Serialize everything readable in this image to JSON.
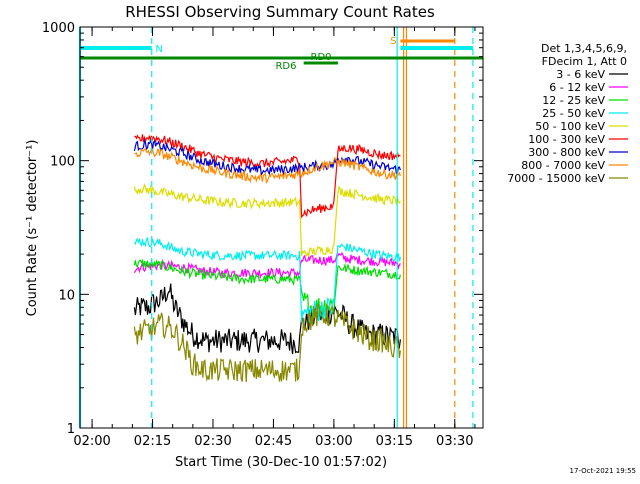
{
  "chart_data": {
    "type": "line",
    "title": "RHESSI Observing Summary Count Rates",
    "xlabel": "Start Time (30-Dec-10 01:57:02)",
    "ylabel": "Count Rate (s⁻¹ detector⁻¹)",
    "xrange_minutes": [
      0,
      100
    ],
    "ylim": [
      1,
      1000
    ],
    "yscale": "log",
    "xticks": [
      {
        "t": 3,
        "label": "02:00"
      },
      {
        "t": 18,
        "label": "02:15"
      },
      {
        "t": 33,
        "label": "02:30"
      },
      {
        "t": 48,
        "label": "02:45"
      },
      {
        "t": 63,
        "label": "03:00"
      },
      {
        "t": 78,
        "label": "03:15"
      },
      {
        "t": 93,
        "label": "03:30"
      }
    ],
    "yticks": [
      {
        "v": 1,
        "label": "1"
      },
      {
        "v": 10,
        "label": "10"
      },
      {
        "v": 100,
        "label": "100"
      },
      {
        "v": 1000,
        "label": "1000"
      }
    ],
    "legend_title": [
      "Det 1,3,4,5,6,9,",
      "FDecim 1, Att 0"
    ],
    "legend_position": "right",
    "series": [
      {
        "name": "3 - 6 keV",
        "color": "#000000",
        "x": [
          13.5,
          15,
          17,
          18,
          20,
          22,
          23.5,
          26,
          28,
          31,
          35,
          40,
          45,
          50,
          54.5,
          55,
          57,
          59.5,
          61,
          63,
          65,
          67,
          69,
          71,
          73,
          75,
          77,
          78.5,
          79.5
        ],
        "y": [
          7.5,
          8,
          8,
          8.5,
          9,
          11,
          8,
          6,
          5,
          4.5,
          4.5,
          4.5,
          4.5,
          4.5,
          4.3,
          6,
          6.5,
          7,
          7,
          7.5,
          7,
          6,
          5.5,
          5,
          5,
          5,
          4.8,
          4.8,
          4.6
        ]
      },
      {
        "name": "6 - 12 keV",
        "color": "#ff00ff",
        "x": [
          13.5,
          15,
          20,
          25,
          30,
          35,
          40,
          45,
          50,
          54.5,
          55,
          58,
          63,
          64,
          66,
          70,
          75,
          79.5
        ],
        "y": [
          15.5,
          16,
          16.5,
          16,
          15,
          14.5,
          14.5,
          14.5,
          14.5,
          14.5,
          18,
          18,
          18,
          19.5,
          18.5,
          18,
          17.5,
          17
        ]
      },
      {
        "name": "12 - 25 keV",
        "color": "#00dd00",
        "x": [
          13.5,
          15,
          20,
          25,
          30,
          35,
          40,
          45,
          50,
          54.5,
          55,
          58,
          63,
          64,
          66,
          70,
          75,
          79.5
        ],
        "y": [
          17,
          17,
          16.5,
          15,
          14,
          13.5,
          13,
          13,
          13,
          12.8,
          9,
          8,
          8.5,
          16,
          15.5,
          15,
          14.5,
          14
        ]
      },
      {
        "name": "25 - 50 keV",
        "color": "#00eeee",
        "x": [
          13.5,
          15,
          20,
          25,
          30,
          35,
          40,
          45,
          50,
          54.5,
          55,
          58,
          63,
          64,
          66,
          70,
          75,
          79.5
        ],
        "y": [
          24,
          25,
          24,
          21,
          20,
          19.5,
          19.5,
          19.5,
          19.5,
          19.5,
          7,
          7.5,
          8,
          23,
          22.5,
          21,
          19.5,
          19
        ]
      },
      {
        "name": "50 - 100 keV",
        "color": "#dddd00",
        "x": [
          13.5,
          15,
          20,
          25,
          30,
          35,
          40,
          45,
          50,
          54.5,
          55,
          58,
          63,
          64,
          66,
          70,
          75,
          79.5
        ],
        "y": [
          60,
          62,
          58,
          54,
          51,
          49,
          48,
          48,
          48.5,
          49,
          20,
          21,
          22,
          60,
          58,
          55,
          51,
          50
        ]
      },
      {
        "name": "100 - 300 keV",
        "color": "#ff0000",
        "x": [
          13.5,
          15,
          17,
          20,
          25,
          30,
          35,
          40,
          45,
          50,
          54.5,
          55,
          58,
          63,
          64,
          66,
          70,
          75,
          79.5
        ],
        "y": [
          140,
          145,
          150,
          145,
          130,
          112,
          103,
          98,
          95,
          98,
          102,
          40,
          43,
          46,
          120,
          125,
          120,
          110,
          108
        ]
      },
      {
        "name": "300 - 800 keV",
        "color": "#0000cc",
        "x": [
          13.5,
          15,
          17,
          20,
          25,
          30,
          35,
          40,
          45,
          50,
          54.5,
          55,
          58,
          63,
          64,
          66,
          70,
          75,
          79.5
        ],
        "y": [
          128,
          130,
          132,
          128,
          115,
          100,
          92,
          87,
          84,
          86,
          88,
          89,
          91,
          93,
          103,
          105,
          98,
          90,
          85
        ]
      },
      {
        "name": "800 - 7000 keV",
        "color": "#ff8800",
        "x": [
          13.5,
          15,
          17,
          20,
          25,
          30,
          35,
          40,
          45,
          50,
          54.5,
          58,
          62,
          64,
          66,
          70,
          75,
          79.5
        ],
        "y": [
          112,
          115,
          117,
          113,
          100,
          88,
          82,
          77,
          74,
          76,
          80,
          88,
          96,
          98,
          96,
          88,
          80,
          77
        ]
      },
      {
        "name": "7000 - 15000 keV",
        "color": "#888800",
        "x": [
          13.5,
          15,
          18,
          20,
          23,
          26,
          28,
          31,
          35,
          40,
          45,
          50,
          54.5,
          55,
          57,
          59.5,
          62,
          64,
          66,
          68,
          70,
          73,
          75,
          77,
          78.5,
          79.5
        ],
        "y": [
          4.8,
          5.2,
          5.5,
          6,
          5.5,
          4,
          3,
          2.7,
          2.7,
          2.7,
          2.7,
          2.7,
          2.7,
          6,
          6.5,
          7,
          7,
          6.5,
          6,
          5.5,
          5,
          4.5,
          4.5,
          4,
          4,
          3.8
        ]
      }
    ],
    "annotations": {
      "saa_label": "S",
      "night_label": "N",
      "attenuator_labels": [
        "RD0",
        "RD6"
      ],
      "night_bars": [
        [
          0,
          17.8
        ],
        [
          79.5,
          97.5
        ]
      ],
      "saa_bar": [
        79.5,
        93
      ],
      "green_line": [
        0,
        100
      ],
      "rd0_segment": [
        55.5,
        64
      ],
      "solid_vlines": [
        {
          "t": 78.7,
          "color": "#00eeee"
        },
        {
          "t": 80.3,
          "color": "#ff8800"
        },
        {
          "t": 81,
          "color": "#ff8800"
        }
      ],
      "dashed_vlines": [
        {
          "t": 17.8,
          "color": "#00eeee"
        },
        {
          "t": 93,
          "color": "#ff8800"
        },
        {
          "t": 97.5,
          "color": "#00eeee"
        }
      ]
    }
  },
  "timestamp": "17-Oct-2021 19:55"
}
